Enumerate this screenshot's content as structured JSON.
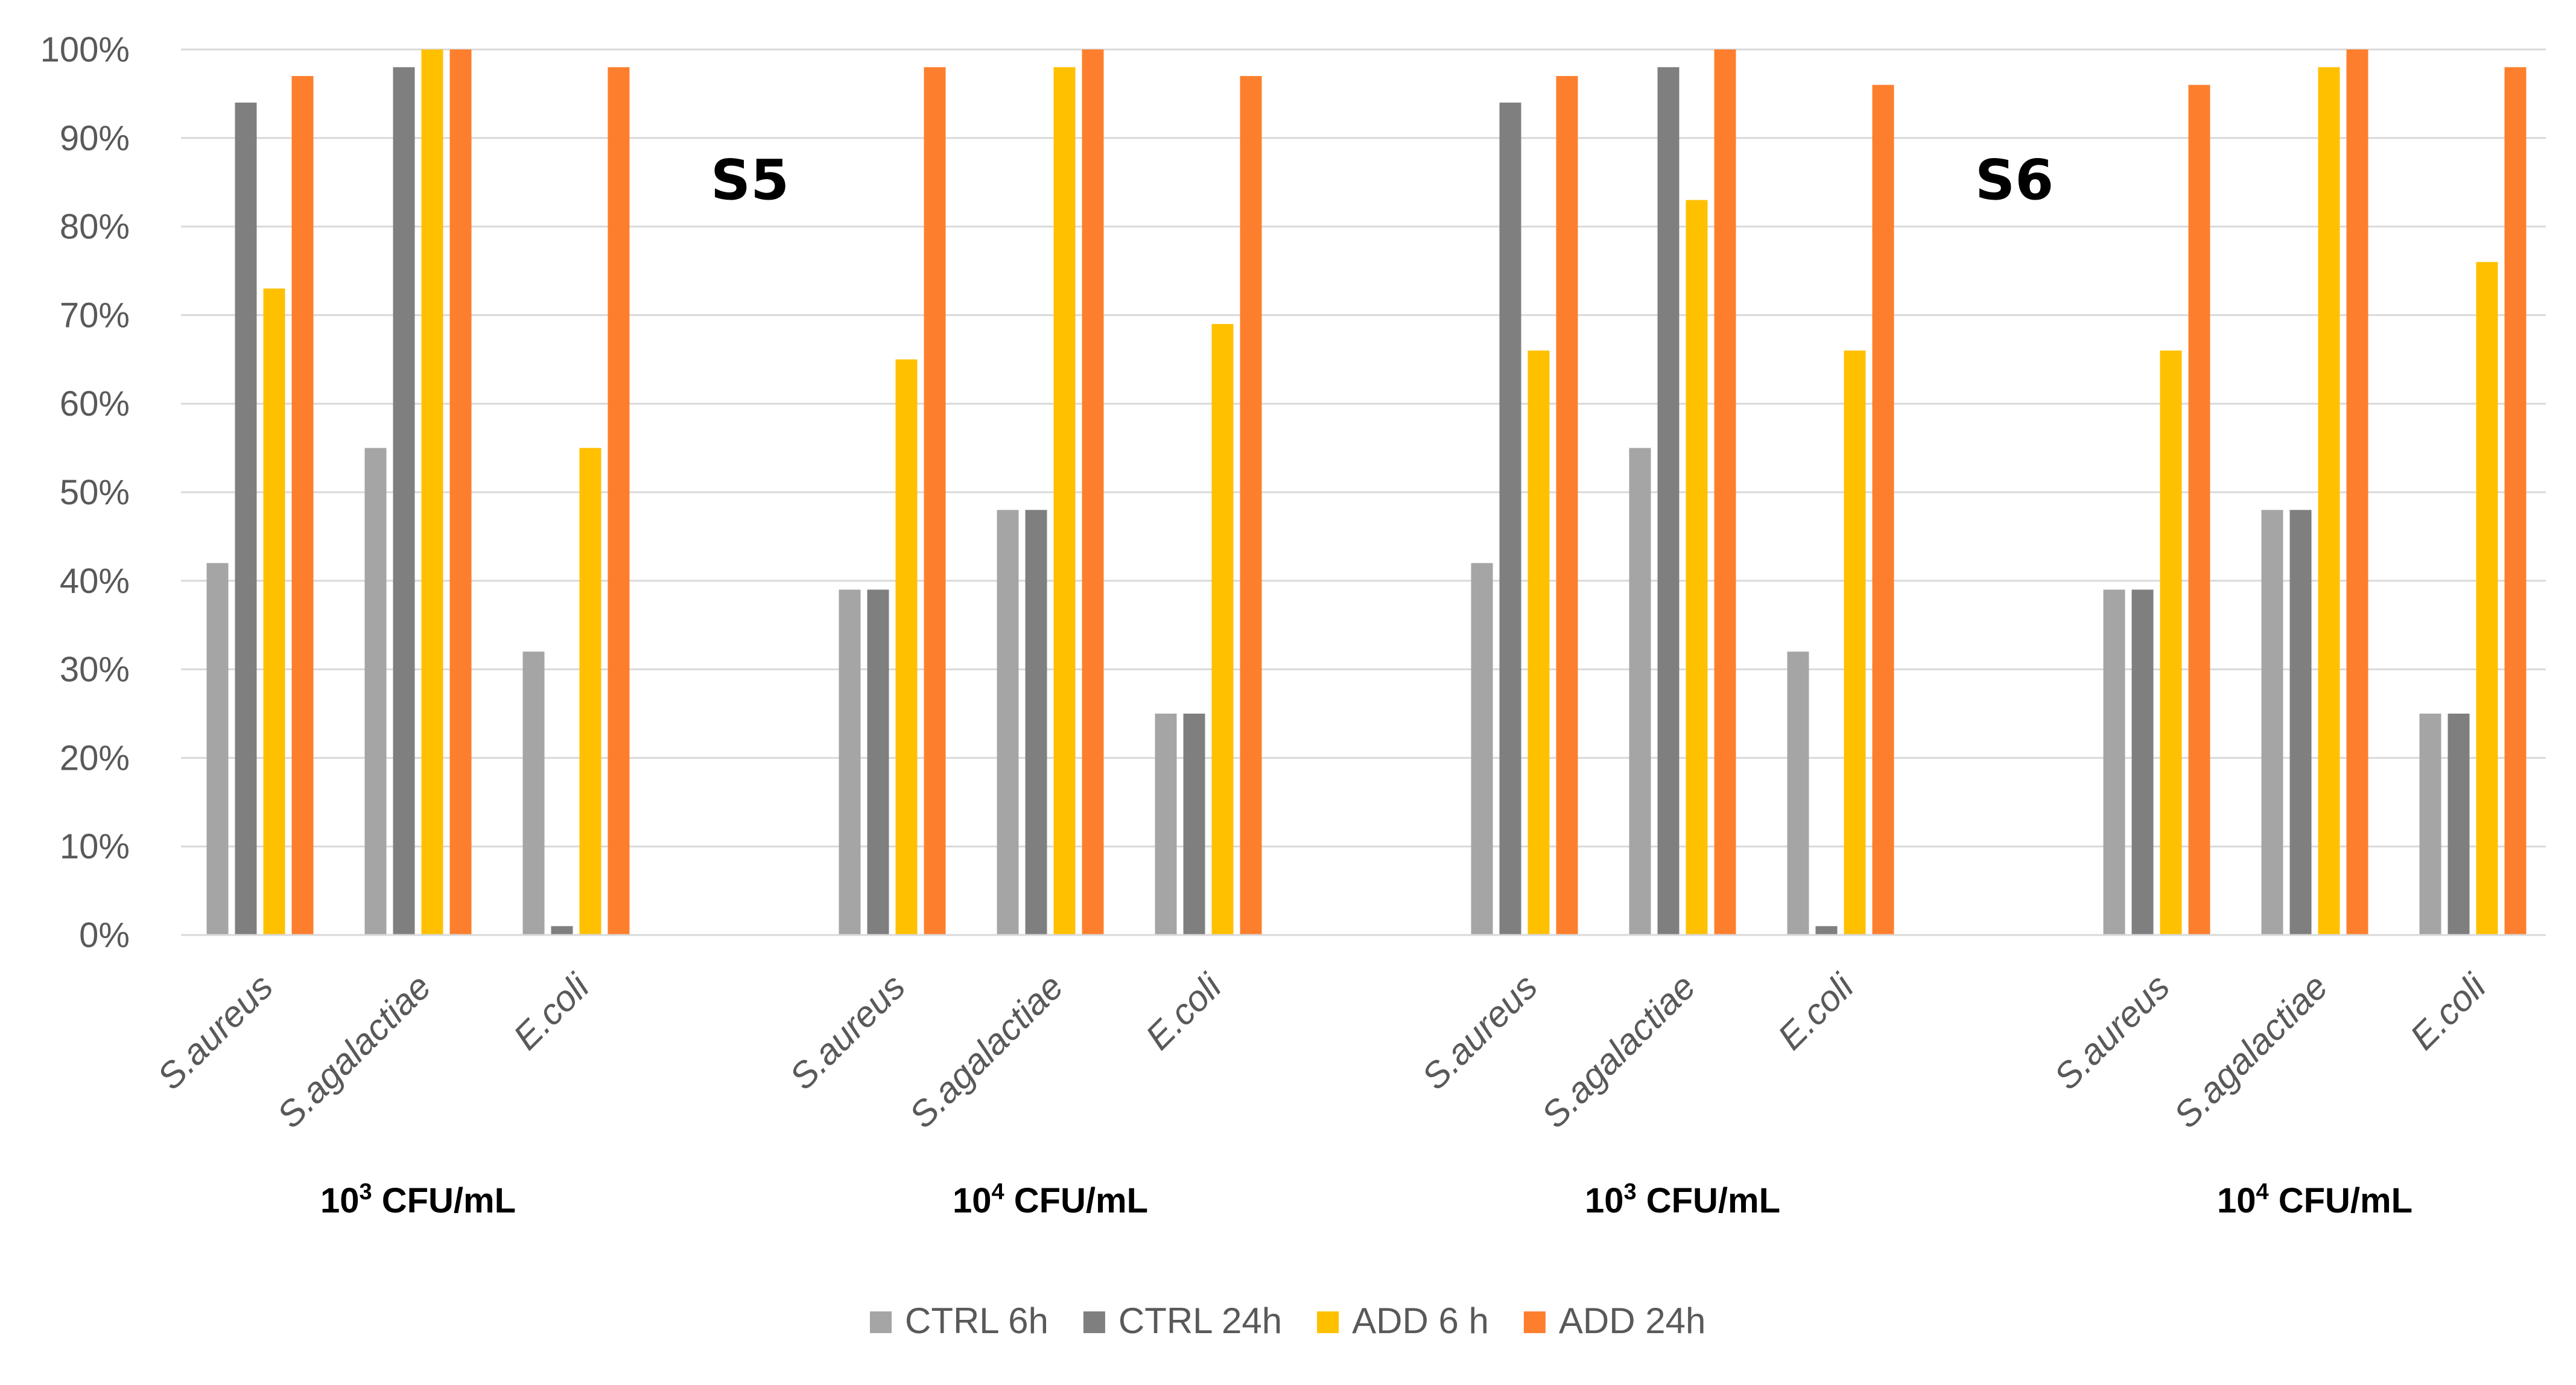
{
  "chart_data": {
    "type": "bar",
    "title": "",
    "xlabel": "",
    "ylabel": "",
    "ylim": [
      0,
      100
    ],
    "yticks": [
      "0%",
      "10%",
      "20%",
      "30%",
      "40%",
      "50%",
      "60%",
      "70%",
      "80%",
      "90%",
      "100%"
    ],
    "grid": true,
    "annotations": [
      {
        "text": "S5",
        "panel": 1
      },
      {
        "text": "S6",
        "panel": 3
      }
    ],
    "series_names": [
      "CTRL 6h",
      "CTRL 24h",
      "ADD 6 h",
      "ADD 24h"
    ],
    "colors": [
      "#a5a5a5",
      "#7f7f7f",
      "#ffc000",
      "#fd7f2d"
    ],
    "panels": [
      {
        "group_base": "10",
        "group_exp": "3",
        "group_unit": " CFU/mL",
        "categories": [
          "S.aureus",
          "S.agalactiae",
          "E.coli"
        ],
        "series": [
          {
            "name": "CTRL 6h",
            "values": [
              42,
              55,
              32
            ]
          },
          {
            "name": "CTRL 24h",
            "values": [
              94,
              98,
              1
            ]
          },
          {
            "name": "ADD 6 h",
            "values": [
              73,
              100,
              55
            ]
          },
          {
            "name": "ADD 24h",
            "values": [
              97,
              100,
              98
            ]
          }
        ]
      },
      {
        "group_base": "10",
        "group_exp": "4",
        "group_unit": " CFU/mL",
        "categories": [
          "S.aureus",
          "S.agalactiae",
          "E.coli"
        ],
        "series": [
          {
            "name": "CTRL 6h",
            "values": [
              39,
              48,
              25
            ]
          },
          {
            "name": "CTRL 24h",
            "values": [
              39,
              48,
              25
            ]
          },
          {
            "name": "ADD 6 h",
            "values": [
              65,
              98,
              69
            ]
          },
          {
            "name": "ADD 24h",
            "values": [
              98,
              100,
              97
            ]
          }
        ]
      },
      {
        "group_base": "10",
        "group_exp": "3",
        "group_unit": " CFU/mL",
        "categories": [
          "S.aureus",
          "S.agalactiae",
          "E.coli"
        ],
        "series": [
          {
            "name": "CTRL 6h",
            "values": [
              42,
              55,
              32
            ]
          },
          {
            "name": "CTRL 24h",
            "values": [
              94,
              98,
              1
            ]
          },
          {
            "name": "ADD 6 h",
            "values": [
              66,
              83,
              66
            ]
          },
          {
            "name": "ADD 24h",
            "values": [
              97,
              100,
              96
            ]
          }
        ]
      },
      {
        "group_base": "10",
        "group_exp": "4",
        "group_unit": " CFU/mL",
        "categories": [
          "S.aureus",
          "S.agalactiae",
          "E.coli"
        ],
        "series": [
          {
            "name": "CTRL 6h",
            "values": [
              39,
              48,
              25
            ]
          },
          {
            "name": "CTRL 24h",
            "values": [
              39,
              48,
              25
            ]
          },
          {
            "name": "ADD 6 h",
            "values": [
              66,
              98,
              76
            ]
          },
          {
            "name": "ADD 24h",
            "values": [
              96,
              100,
              98
            ]
          }
        ]
      }
    ],
    "legend": {
      "position": "bottom",
      "items": [
        {
          "label": "CTRL 6h",
          "color": "#a5a5a5"
        },
        {
          "label": "CTRL 24h",
          "color": "#7f7f7f"
        },
        {
          "label": "ADD 6 h",
          "color": "#ffc000"
        },
        {
          "label": "ADD 24h",
          "color": "#fd7f2d"
        }
      ]
    }
  }
}
